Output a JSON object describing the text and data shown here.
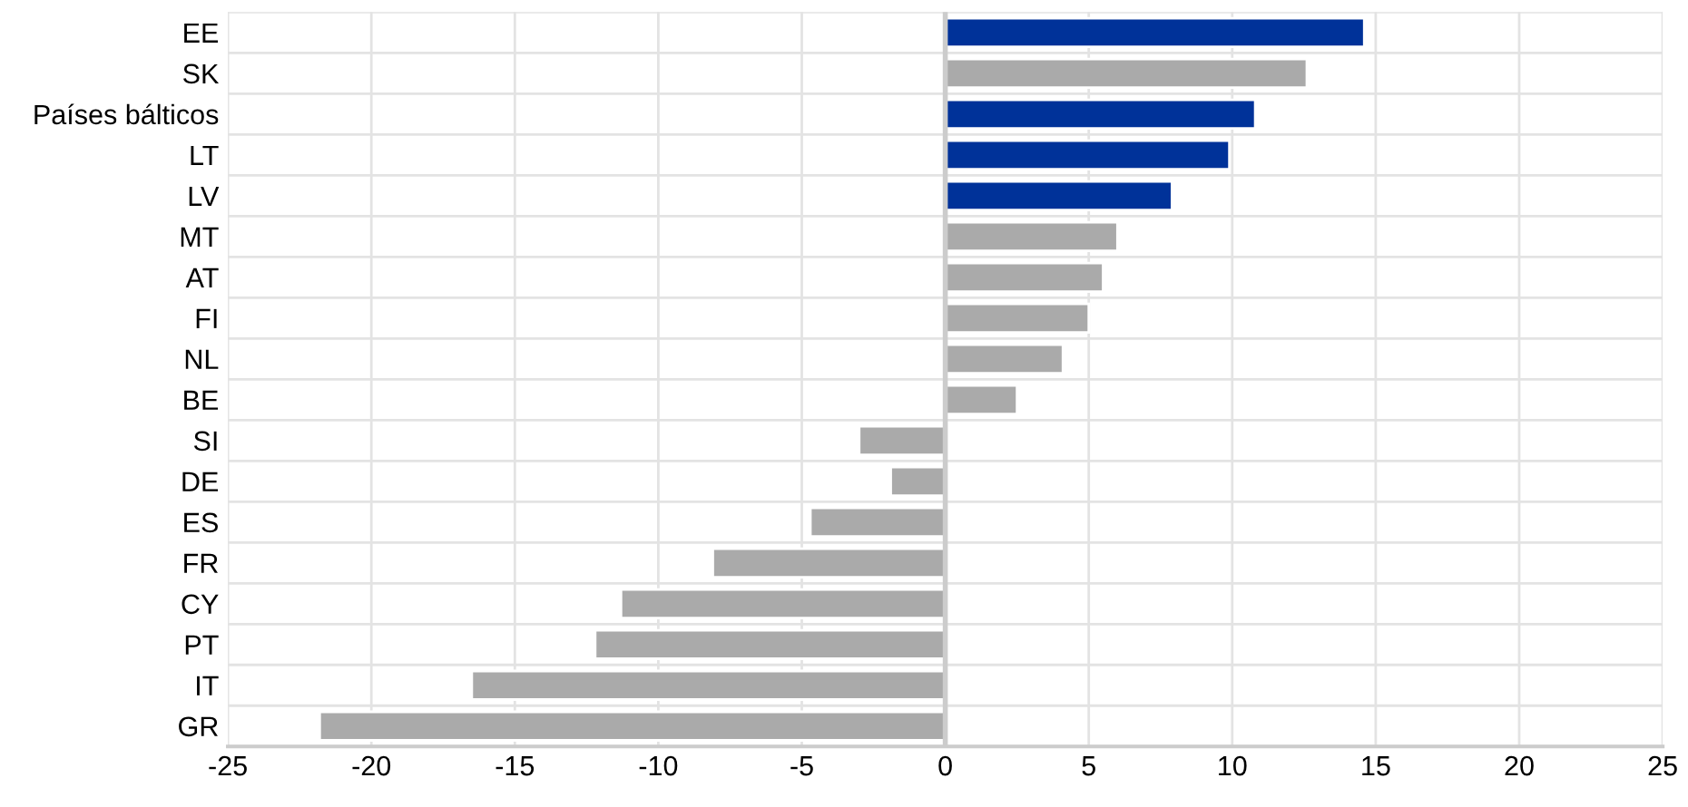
{
  "chart_data": {
    "type": "bar",
    "orientation": "horizontal",
    "categories": [
      "EE",
      "SK",
      "Países bálticos",
      "LT",
      "LV",
      "MT",
      "AT",
      "FI",
      "NL",
      "BE",
      "SI",
      "DE",
      "ES",
      "FR",
      "CY",
      "PT",
      "IT",
      "GR"
    ],
    "values": [
      14.6,
      12.6,
      10.8,
      9.9,
      7.9,
      6.0,
      5.5,
      5.0,
      4.1,
      2.5,
      -3.0,
      -1.9,
      -4.7,
      -8.1,
      -11.3,
      -12.2,
      -16.5,
      -21.8
    ],
    "colors": [
      "#003299",
      "#aaaaaa",
      "#003299",
      "#003299",
      "#003299",
      "#aaaaaa",
      "#aaaaaa",
      "#aaaaaa",
      "#aaaaaa",
      "#aaaaaa",
      "#aaaaaa",
      "#aaaaaa",
      "#aaaaaa",
      "#aaaaaa",
      "#aaaaaa",
      "#aaaaaa",
      "#aaaaaa",
      "#aaaaaa"
    ],
    "xlim": [
      -25,
      25
    ],
    "xticks": [
      -25,
      -20,
      -15,
      -10,
      -5,
      0,
      5,
      10,
      15,
      20,
      25
    ],
    "grid": true
  }
}
